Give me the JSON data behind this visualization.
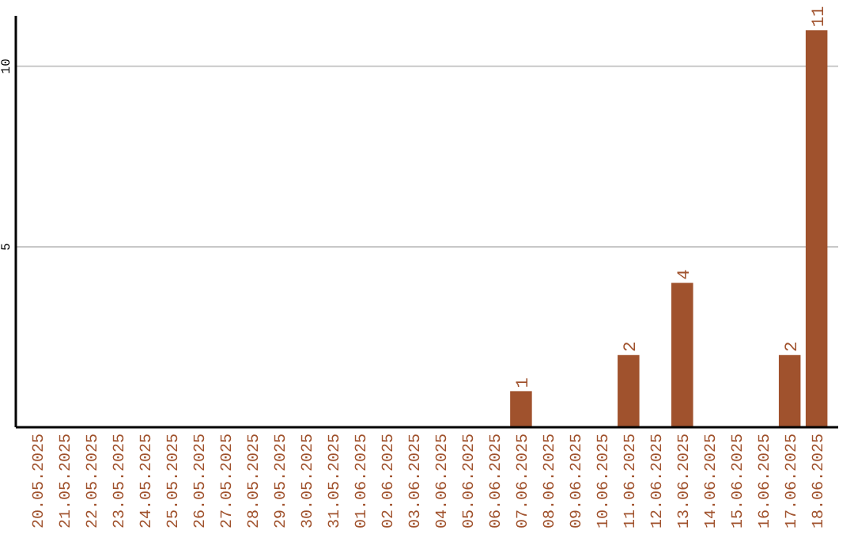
{
  "chart_data": {
    "type": "bar",
    "categories": [
      "20.05.2025",
      "21.05.2025",
      "22.05.2025",
      "23.05.2025",
      "24.05.2025",
      "25.05.2025",
      "26.05.2025",
      "27.05.2025",
      "28.05.2025",
      "29.05.2025",
      "30.05.2025",
      "31.05.2025",
      "01.06.2025",
      "02.06.2025",
      "03.06.2025",
      "04.06.2025",
      "05.06.2025",
      "06.06.2025",
      "07.06.2025",
      "08.06.2025",
      "09.06.2025",
      "10.06.2025",
      "11.06.2025",
      "12.06.2025",
      "13.06.2025",
      "14.06.2025",
      "15.06.2025",
      "16.06.2025",
      "17.06.2025",
      "18.06.2025"
    ],
    "values": [
      0,
      0,
      0,
      0,
      0,
      0,
      0,
      0,
      0,
      0,
      0,
      0,
      0,
      0,
      0,
      0,
      0,
      0,
      1,
      0,
      0,
      0,
      2,
      0,
      4,
      0,
      0,
      0,
      2,
      11
    ],
    "value_labels": [
      null,
      null,
      null,
      null,
      null,
      null,
      null,
      null,
      null,
      null,
      null,
      null,
      null,
      null,
      null,
      null,
      null,
      null,
      "1",
      null,
      null,
      null,
      "2",
      null,
      "4",
      null,
      null,
      null,
      "2",
      "11"
    ],
    "color": "#a0522d",
    "ylim": [
      0,
      11.4
    ],
    "yticks": [
      5,
      10
    ],
    "grid": "y"
  }
}
